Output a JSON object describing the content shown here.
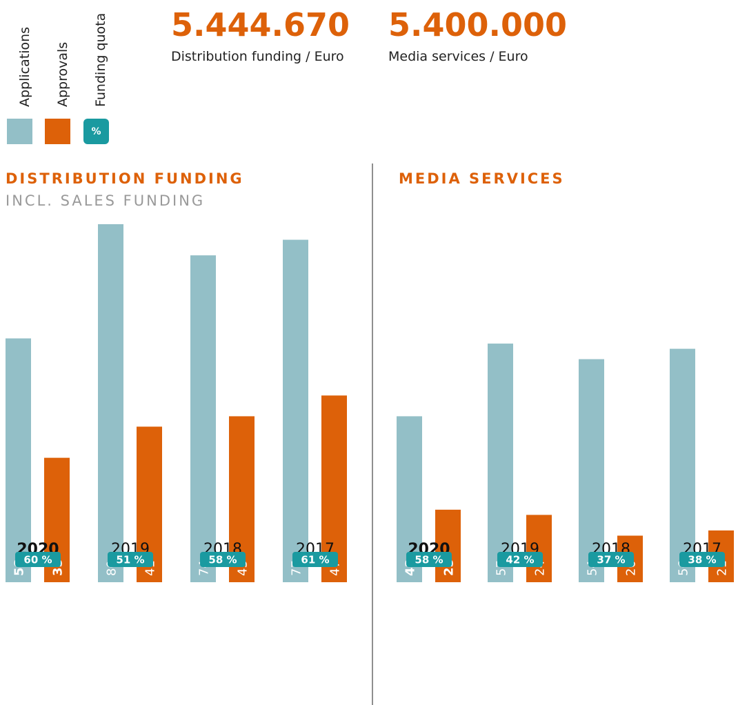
{
  "headlines": [
    {
      "value": "5.444.670",
      "label": "Distribution funding / Euro"
    },
    {
      "value": "5.400.000",
      "label": "Media services / Euro"
    }
  ],
  "quota_legend": {
    "name": "Funding quota",
    "symbol": "%",
    "color": "#1a9aa0"
  },
  "chart_data": [
    {
      "type": "bar",
      "title": "DISTRIBUTION FUNDING",
      "subtitle": "INCL. SALES FUNDING",
      "categories": [
        "2020",
        "2019",
        "2018",
        "2017"
      ],
      "series": [
        {
          "name": "Applications",
          "color": "#93bfc7",
          "values": [
            58,
            80,
            74,
            77
          ]
        },
        {
          "name": "Approvals",
          "color": "#dd6109",
          "values": [
            35,
            41,
            43,
            47
          ]
        }
      ],
      "quota": [
        "60 %",
        "51 %",
        "58 %",
        "61 %"
      ],
      "ylim": [
        0,
        80
      ]
    },
    {
      "type": "bar",
      "title": "MEDIA SERVICES",
      "categories": [
        "2020",
        "2019",
        "2018",
        "2017"
      ],
      "series": [
        {
          "name": "Applications",
          "color": "#93bfc7",
          "values": [
            43,
            57,
            54,
            56
          ]
        },
        {
          "name": "Approvals",
          "color": "#dd6109",
          "values": [
            25,
            24,
            20,
            21
          ]
        }
      ],
      "quota": [
        "58 %",
        "42 %",
        "37 %",
        "38 %"
      ],
      "ylim": [
        0,
        80
      ]
    }
  ]
}
